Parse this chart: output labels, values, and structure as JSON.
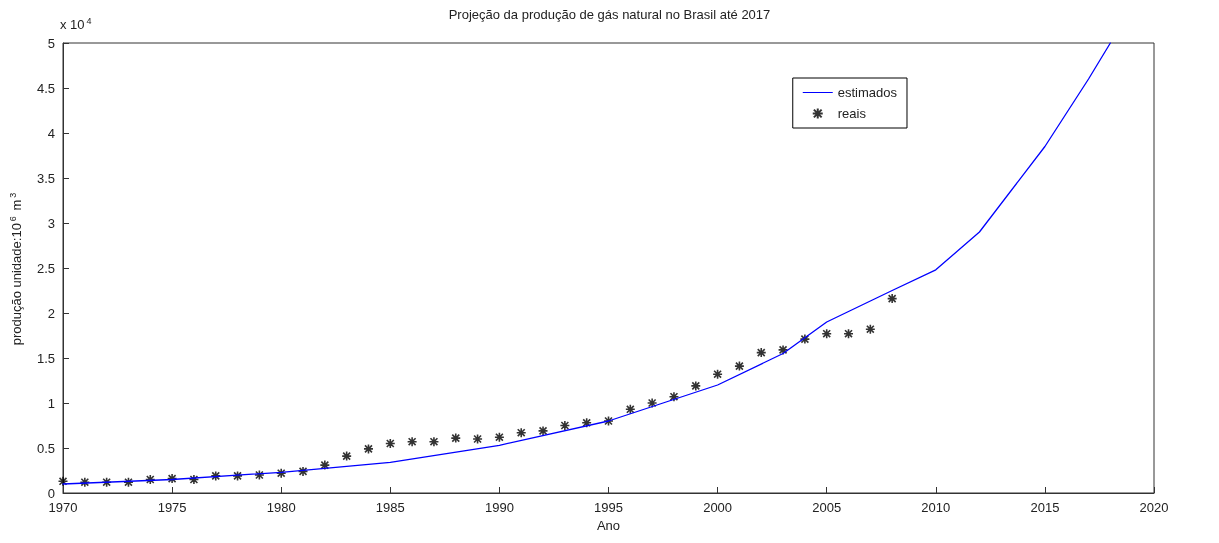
{
  "chart_data": {
    "type": "line",
    "title": "Projeção da produção de gás natural no Brasil até 2017",
    "xlabel": "Ano",
    "ylabel": "produção unidade:10$^{6}$ m$^{3}$",
    "annotations": [
      "x 10$^{4}$"
    ],
    "xlim": [
      1970,
      2020
    ],
    "xticks": [
      1970,
      1975,
      1980,
      1985,
      1990,
      1995,
      2000,
      2005,
      2010,
      2015,
      2020
    ],
    "ylim": [
      0,
      5
    ],
    "yticks": [
      0,
      0.5,
      1,
      1.5,
      2,
      2.5,
      3,
      3.5,
      4,
      4.5,
      5
    ],
    "grid": false,
    "legend": "top right",
    "series": [
      {
        "name": "estimados",
        "type": "line",
        "color": "#0000ff",
        "marker": "none",
        "line_style": "solid",
        "x": [
          1970,
          1975,
          1980,
          1985,
          1990,
          1995,
          2000,
          2003,
          2005,
          2008,
          2010,
          2012,
          2015,
          2017,
          2018
        ],
        "values": [
          0.1,
          0.15,
          0.23,
          0.34,
          0.53,
          0.8,
          1.2,
          1.55,
          1.9,
          2.25,
          2.48,
          2.9,
          3.85,
          4.6,
          5.0
        ]
      },
      {
        "name": "reais",
        "type": "scatter",
        "color": "#000000",
        "marker": "cross",
        "x": [
          1970,
          1971,
          1972,
          1973,
          1974,
          1975,
          1976,
          1977,
          1978,
          1979,
          1980,
          1981,
          1982,
          1983,
          1984,
          1985,
          1986,
          1987,
          1988,
          1989,
          1990,
          1991,
          1992,
          1993,
          1994,
          1995,
          1996,
          1997,
          1998,
          1999,
          2000,
          2001,
          2002,
          2003,
          2004,
          2005,
          2006,
          2007,
          2008
        ],
        "values": [
          0.13,
          0.12,
          0.12,
          0.12,
          0.15,
          0.16,
          0.15,
          0.19,
          0.19,
          0.2,
          0.22,
          0.24,
          0.31,
          0.41,
          0.49,
          0.55,
          0.57,
          0.57,
          0.61,
          0.6,
          0.62,
          0.67,
          0.69,
          0.75,
          0.78,
          0.8,
          0.93,
          1.0,
          1.07,
          1.19,
          1.32,
          1.41,
          1.56,
          1.59,
          1.71,
          1.77,
          1.77,
          1.82,
          2.16
        ]
      }
    ]
  }
}
